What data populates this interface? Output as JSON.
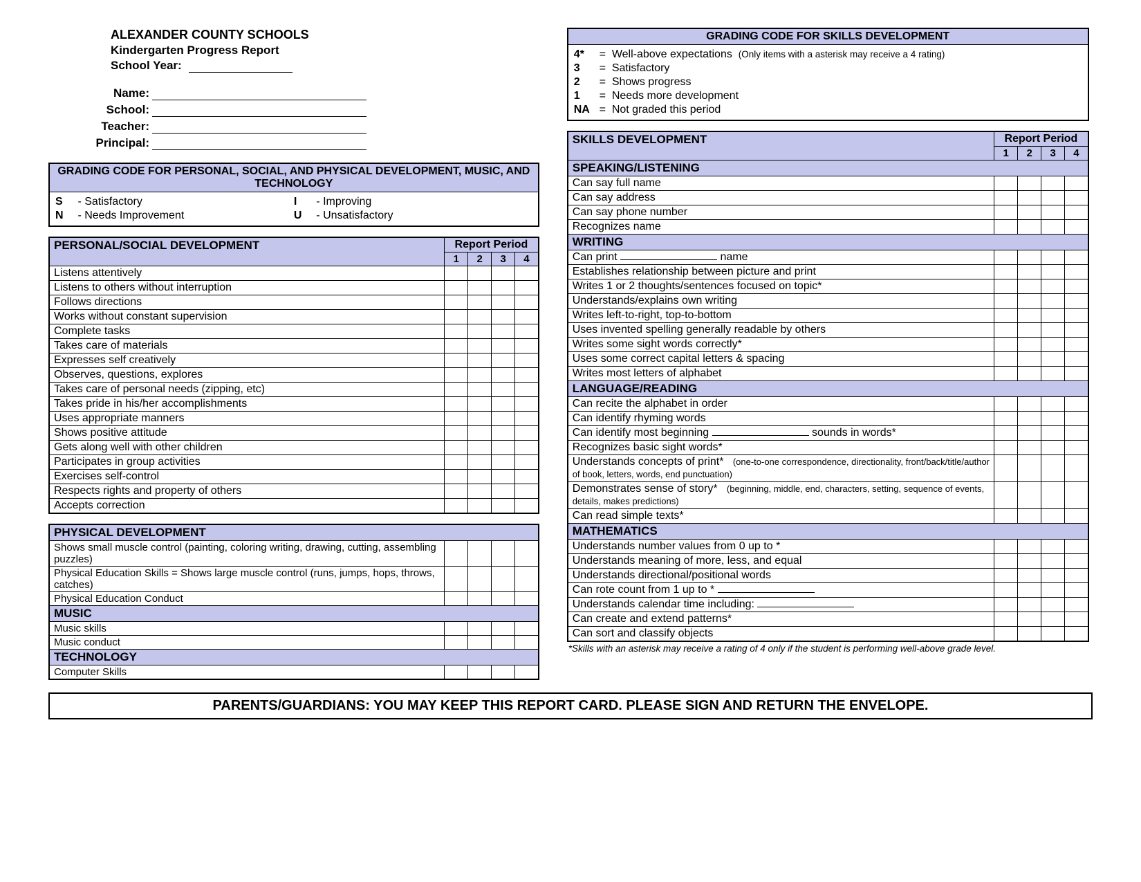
{
  "colors": {
    "accent_bg": "#c4c6ec",
    "border": "#000000",
    "page_bg": "#ffffff",
    "text": "#000000"
  },
  "header": {
    "district": "ALEXANDER COUNTY SCHOOLS",
    "report_title": "Kindergarten Progress Report",
    "school_year_label": "School Year:",
    "fields": {
      "name": "Name:",
      "school": "School:",
      "teacher": "Teacher:",
      "principal": "Principal:"
    }
  },
  "left_code_box": {
    "title": "GRADING CODE FOR PERSONAL, SOCIAL, AND PHYSICAL DEVELOPMENT, MUSIC, AND TECHNOLOGY",
    "codes": [
      {
        "k": "S",
        "v": "- Satisfactory"
      },
      {
        "k": "I",
        "v": "- Improving"
      },
      {
        "k": "N",
        "v": "- Needs Improvement"
      },
      {
        "k": "U",
        "v": "- Unsatisfactory"
      }
    ]
  },
  "right_code_box": {
    "title": "GRADING CODE FOR SKILLS DEVELOPMENT",
    "codes": [
      {
        "k": "4*",
        "eq": "=",
        "v": "Well-above expectations",
        "note": "(Only items with a asterisk may receive a 4 rating)"
      },
      {
        "k": "3",
        "eq": "=",
        "v": "Satisfactory"
      },
      {
        "k": "2",
        "eq": "=",
        "v": "Shows progress"
      },
      {
        "k": "1",
        "eq": "=",
        "v": "Needs more development"
      },
      {
        "k": "NA",
        "eq": "=",
        "v": "Not graded this period"
      }
    ]
  },
  "report_period_label": "Report Period",
  "periods": [
    "1",
    "2",
    "3",
    "4"
  ],
  "left_tables": [
    {
      "header": "PERSONAL/SOCIAL DEVELOPMENT",
      "rows": [
        "Listens attentively",
        "Listens to others without interruption",
        "Follows directions",
        "Works without constant supervision",
        "Complete tasks",
        "Takes care of materials",
        "Expresses self creatively",
        "Observes, questions, explores",
        "Takes care of personal needs (zipping, etc)",
        "Takes pride in his/her accomplishments",
        "Uses appropriate manners",
        "Shows positive attitude",
        "Gets along well with other children",
        "Participates in group activities",
        "Exercises self-control",
        "Respects rights and property of others",
        "Accepts correction"
      ]
    }
  ],
  "left_table2": {
    "sections": [
      {
        "header": "PHYSICAL DEVELOPMENT",
        "rows": [
          "Shows small muscle control (painting, coloring writing, drawing, cutting, assembling puzzles)",
          "Physical Education Skills = Shows large muscle control (runs, jumps, hops, throws, catches)",
          "Physical Education Conduct"
        ]
      },
      {
        "header": "MUSIC",
        "rows": [
          "Music skills",
          "Music conduct"
        ]
      },
      {
        "header": "TECHNOLOGY",
        "rows": [
          "Computer Skills"
        ]
      }
    ]
  },
  "right_table": {
    "header": "SKILLS DEVELOPMENT",
    "sections": [
      {
        "header": "SPEAKING/LISTENING",
        "rows": [
          {
            "t": "Can say full name"
          },
          {
            "t": "Can say address"
          },
          {
            "t": "Can say phone number"
          },
          {
            "t": "Recognizes name"
          }
        ]
      },
      {
        "header": "WRITING",
        "rows": [
          {
            "t_pre": "Can print",
            "blank": true,
            "t_post": "name"
          },
          {
            "t": "Establishes relationship between picture and print"
          },
          {
            "t": "Writes 1 or 2 thoughts/sentences focused on topic*"
          },
          {
            "t": "Understands/explains own writing"
          },
          {
            "t": "Writes left-to-right, top-to-bottom"
          },
          {
            "t": "Uses invented spelling generally readable by others"
          },
          {
            "t": "Writes some sight words correctly*"
          },
          {
            "t": "Uses some correct capital letters & spacing"
          },
          {
            "t": "Writes most letters of alphabet"
          }
        ]
      },
      {
        "header": "LANGUAGE/READING",
        "rows": [
          {
            "t": "Can recite the alphabet in order"
          },
          {
            "t": "Can identify rhyming words"
          },
          {
            "t_pre": "Can identify most beginning",
            "blank": true,
            "t_post": "sounds in words*"
          },
          {
            "t": "Recognizes basic sight words*"
          },
          {
            "t": "Understands concepts of print*",
            "note": "(one-to-one correspondence, directionality, front/back/title/author of book, letters, words, end punctuation)"
          },
          {
            "t": "Demonstrates sense of story*",
            "note": "(beginning, middle, end, characters, setting, sequence of events, details, makes predictions)"
          },
          {
            "t": "Can read simple texts*"
          }
        ]
      },
      {
        "header": "MATHEMATICS",
        "rows": [
          {
            "t": "Understands number values from 0 up to *"
          },
          {
            "t": "Understands meaning of more, less, and equal"
          },
          {
            "t": "Understands directional/positional words"
          },
          {
            "t_pre": "Can rote count from 1 up to *",
            "blank": true,
            "t_post": ""
          },
          {
            "t_pre": "Understands calendar time including:",
            "blank": true,
            "t_post": ""
          },
          {
            "t": "Can create and extend patterns*"
          },
          {
            "t": "Can sort and classify objects"
          }
        ]
      }
    ],
    "footnote": "*Skills with an asterisk may receive a rating of 4 only if the student is performing well-above grade level."
  },
  "footer": "PARENTS/GUARDIANS:  YOU MAY KEEP THIS REPORT CARD.  PLEASE SIGN AND RETURN THE ENVELOPE."
}
